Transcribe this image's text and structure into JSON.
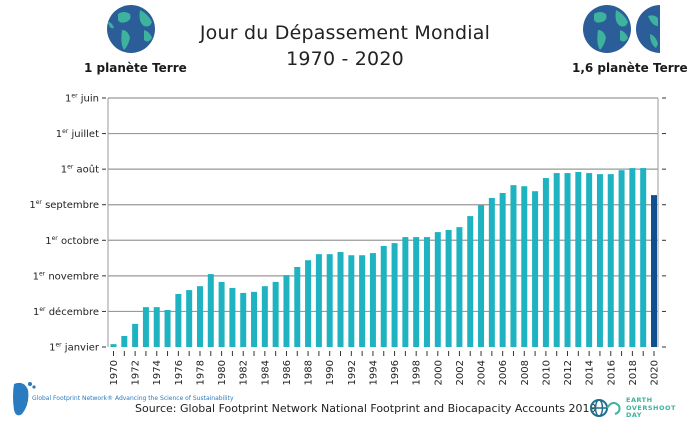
{
  "header": {
    "title": "Jour du Dépassement Mondial",
    "subtitle": "1970 - 2020",
    "left_label": "1 planète Terre",
    "right_label": "1,6 planète Terre",
    "left_icon": "earth-globe-icon",
    "right_icon": "earth-globe-and-partial-globe-icon"
  },
  "footer": {
    "source": "Source: Global Footprint Network National Footprint and Biocapacity Accounts 2019",
    "logo_left": "Global Footprint Network® Advancing the Science of Sustainability",
    "logo_right": "EARTH OVERSHOOT DAY"
  },
  "colors": {
    "bar": "#1fb3c1",
    "bar_highlight": "#0f4f8f",
    "grid": "#9a9a9a",
    "globe_ocean": "#2b5d99",
    "globe_land": "#3db39e"
  },
  "chart_data": {
    "type": "bar",
    "title": "Jour du Dépassement Mondial 1970 - 2020",
    "xlabel": "",
    "ylabel": "",
    "y_unit": "months before 1er janvier (0 = 1er janvier, 7 = 1er juin)",
    "ylim": [
      0,
      7
    ],
    "grid": true,
    "y_ticks": [
      {
        "value": 7,
        "sup": "er",
        "label_pre": "1",
        "label_post": " juin"
      },
      {
        "value": 6,
        "sup": "er",
        "label_pre": "1",
        "label_post": " juillet"
      },
      {
        "value": 5,
        "sup": "er",
        "label_pre": "1",
        "label_post": " août"
      },
      {
        "value": 4,
        "sup": "er",
        "label_pre": "1",
        "label_post": " septembre"
      },
      {
        "value": 3,
        "sup": "er",
        "label_pre": "1",
        "label_post": " octobre"
      },
      {
        "value": 2,
        "sup": "er",
        "label_pre": "1",
        "label_post": " novembre"
      },
      {
        "value": 1,
        "sup": "er",
        "label_pre": "1",
        "label_post": " décembre"
      },
      {
        "value": 0,
        "sup": "er",
        "label_pre": "1",
        "label_post": " janvier"
      }
    ],
    "categories": [
      "1970",
      "1971",
      "1972",
      "1973",
      "1974",
      "1975",
      "1976",
      "1977",
      "1978",
      "1979",
      "1980",
      "1981",
      "1982",
      "1983",
      "1984",
      "1985",
      "1986",
      "1987",
      "1988",
      "1989",
      "1990",
      "1991",
      "1992",
      "1993",
      "1994",
      "1995",
      "1996",
      "1997",
      "1998",
      "1999",
      "2000",
      "2001",
      "2002",
      "2003",
      "2004",
      "2005",
      "2006",
      "2007",
      "2008",
      "2009",
      "2010",
      "2011",
      "2012",
      "2013",
      "2014",
      "2015",
      "2016",
      "2017",
      "2018",
      "2019",
      "2020"
    ],
    "x_tick_labels": [
      "1970",
      "1972",
      "1974",
      "1976",
      "1978",
      "1980",
      "1982",
      "1984",
      "1986",
      "1988",
      "1990",
      "1992",
      "1994",
      "1996",
      "1998",
      "2000",
      "2002",
      "2004",
      "2006",
      "2008",
      "2010",
      "2012",
      "2014",
      "2016",
      "2018",
      "2020"
    ],
    "values": [
      0.08,
      0.31,
      0.65,
      1.12,
      1.12,
      1.04,
      1.49,
      1.6,
      1.71,
      2.05,
      1.83,
      1.66,
      1.52,
      1.55,
      1.71,
      1.83,
      2.02,
      2.25,
      2.44,
      2.61,
      2.61,
      2.67,
      2.58,
      2.58,
      2.64,
      2.84,
      2.92,
      3.09,
      3.09,
      3.09,
      3.23,
      3.29,
      3.37,
      3.68,
      3.99,
      4.19,
      4.33,
      4.55,
      4.52,
      4.38,
      4.75,
      4.89,
      4.89,
      4.92,
      4.89,
      4.86,
      4.86,
      4.97,
      5.03,
      5.03,
      4.27
    ],
    "highlight_category": "2020"
  }
}
